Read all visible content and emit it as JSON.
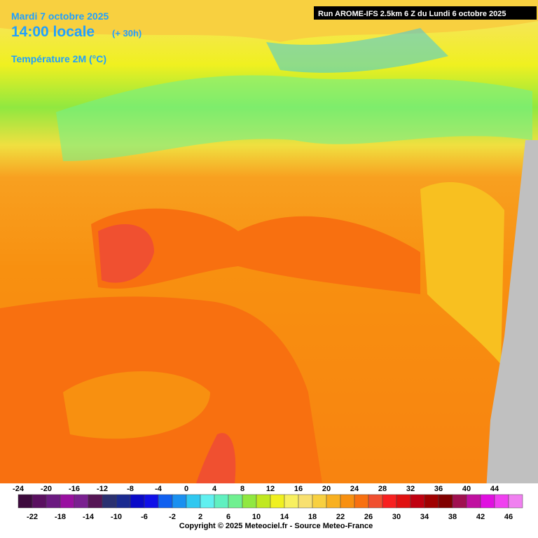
{
  "header": {
    "date": "Mardi 7 octobre 2025",
    "time": "14:00 locale",
    "lead": "(+ 30h)",
    "variable": "Température 2M (°C)"
  },
  "run": "Run AROME-IFS 2.5km 6 Z du Lundi 6 octobre 2025",
  "legend": {
    "values": [
      -24,
      -22,
      -20,
      -18,
      -16,
      -14,
      -12,
      -10,
      -8,
      -6,
      -4,
      -2,
      0,
      2,
      4,
      6,
      8,
      10,
      12,
      14,
      16,
      18,
      20,
      22,
      24,
      26,
      28,
      30,
      32,
      34,
      36,
      38,
      40,
      42,
      44,
      46
    ],
    "colors": [
      "#3d0a3d",
      "#5a1060",
      "#6b1a80",
      "#9910a0",
      "#7a2090",
      "#551555",
      "#2a3070",
      "#1a2a90",
      "#0a0ac8",
      "#1010e8",
      "#1060f0",
      "#1a90f0",
      "#30c8f0",
      "#60f0f0",
      "#60f0c0",
      "#70f090",
      "#90e840",
      "#c0e820",
      "#f0f020",
      "#f8f060",
      "#f8e070",
      "#f8d040",
      "#f8b020",
      "#f89010",
      "#f87010",
      "#f05030",
      "#f82020",
      "#e01010",
      "#c00010",
      "#a00000",
      "#800000",
      "#a01050",
      "#c010a0",
      "#e010e0",
      "#f040f0",
      "#f080f0"
    ]
  },
  "copyright": "Copyright © 2025 Meteociel.fr - Source Meteo-France"
}
